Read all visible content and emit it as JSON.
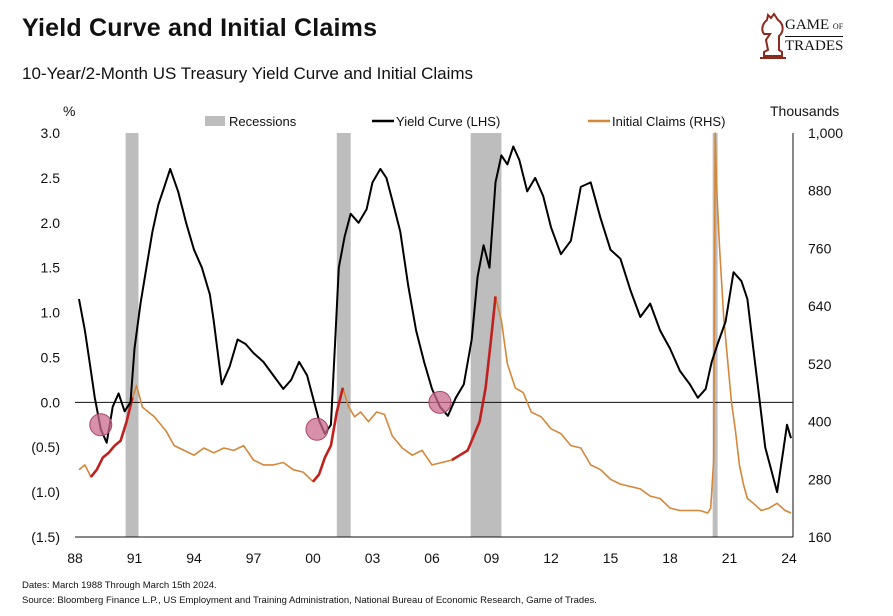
{
  "header": {
    "title": "Yield Curve  and Initial Claims",
    "subtitle": "10-Year/2-Month US Treasury Yield Curve and Initial Claims"
  },
  "logo": {
    "line1": "GAME",
    "line1_small": "OF",
    "line2": "TRADES",
    "icon": "knight-chess-icon"
  },
  "footer": {
    "dates": "Dates: March 1988 Through March 15th 2024.",
    "source": "Source: Bloomberg Finance L.P., US Employment and Training Administration, National Bureau of Economic Research, Game of Trades."
  },
  "colors": {
    "yield": "#000000",
    "claims": "#D4873A",
    "claims_highlight": "#C0201E",
    "recession": "#BDBDBD",
    "circle": "#C9698E"
  },
  "chart_data": {
    "type": "line",
    "left_unit": "%",
    "right_unit": "Thousands",
    "legend": [
      "Recessions",
      "Yield Curve (LHS)",
      "Initial Claims (RHS)"
    ],
    "legend_placement": "top",
    "x_tick_labels": [
      "88",
      "91",
      "94",
      "97",
      "00",
      "03",
      "06",
      "09",
      "12",
      "15",
      "18",
      "21",
      "24"
    ],
    "x_tick_years": [
      1988,
      1991,
      1994,
      1997,
      2000,
      2003,
      2006,
      2009,
      2012,
      2015,
      2018,
      2021,
      2024
    ],
    "xlim": [
      1988.0,
      2024.2
    ],
    "left_ylim": [
      -1.5,
      3.0
    ],
    "left_tick_labels": [
      "3.0",
      "2.5",
      "2.0",
      "1.5",
      "1.0",
      "0.5",
      "0.0",
      "(0.5)",
      "(1.0)",
      "(1.5)"
    ],
    "left_tick_values": [
      3.0,
      2.5,
      2.0,
      1.5,
      1.0,
      0.5,
      0.0,
      -0.5,
      -1.0,
      -1.5
    ],
    "right_ylim": [
      160,
      1000
    ],
    "right_tick_labels": [
      "1,000",
      "880",
      "760",
      "640",
      "520",
      "400",
      "280",
      "160"
    ],
    "right_tick_values": [
      1000,
      880,
      760,
      640,
      520,
      400,
      280,
      160
    ],
    "recessions": [
      [
        1990.55,
        1991.2
      ],
      [
        2001.2,
        2001.9
      ],
      [
        2007.95,
        2009.5
      ],
      [
        2020.15,
        2020.4
      ]
    ],
    "inversion_markers": [
      [
        1989.3,
        -0.25
      ],
      [
        2000.2,
        -0.3
      ],
      [
        2006.4,
        0.0
      ]
    ],
    "series": [
      {
        "name": "Yield Curve (LHS)",
        "x": [
          1988.2,
          1988.5,
          1988.8,
          1989.0,
          1989.3,
          1989.6,
          1989.9,
          1990.2,
          1990.5,
          1990.8,
          1991.0,
          1991.3,
          1991.6,
          1991.9,
          1992.2,
          1992.5,
          1992.8,
          1993.2,
          1993.6,
          1994.0,
          1994.4,
          1994.8,
          1995.0,
          1995.4,
          1995.8,
          1996.2,
          1996.6,
          1997.0,
          1997.5,
          1998.0,
          1998.5,
          1998.9,
          1999.3,
          1999.7,
          2000.0,
          2000.3,
          2000.6,
          2000.9,
          2001.1,
          2001.3,
          2001.6,
          2001.9,
          2002.3,
          2002.7,
          2003.0,
          2003.4,
          2003.7,
          2004.0,
          2004.4,
          2004.8,
          2005.2,
          2005.6,
          2006.0,
          2006.4,
          2006.8,
          2007.2,
          2007.6,
          2008.0,
          2008.3,
          2008.6,
          2008.9,
          2009.2,
          2009.5,
          2009.8,
          2010.1,
          2010.4,
          2010.8,
          2011.2,
          2011.6,
          2012.0,
          2012.5,
          2013.0,
          2013.5,
          2014.0,
          2014.5,
          2015.0,
          2015.5,
          2016.0,
          2016.5,
          2017.0,
          2017.5,
          2018.0,
          2018.5,
          2019.0,
          2019.4,
          2019.8,
          2020.1,
          2020.4,
          2020.8,
          2021.2,
          2021.6,
          2021.9,
          2022.2,
          2022.5,
          2022.8,
          2023.1,
          2023.4,
          2023.7,
          2023.9,
          2024.1
        ],
        "values": [
          1.15,
          0.8,
          0.35,
          0.05,
          -0.3,
          -0.45,
          -0.05,
          0.1,
          -0.1,
          0.0,
          0.6,
          1.1,
          1.5,
          1.9,
          2.2,
          2.4,
          2.6,
          2.35,
          2.0,
          1.7,
          1.5,
          1.2,
          0.9,
          0.2,
          0.4,
          0.7,
          0.65,
          0.55,
          0.45,
          0.3,
          0.15,
          0.25,
          0.45,
          0.3,
          0.05,
          -0.2,
          -0.35,
          -0.25,
          0.6,
          1.5,
          1.85,
          2.1,
          2.0,
          2.15,
          2.45,
          2.6,
          2.5,
          2.25,
          1.9,
          1.3,
          0.8,
          0.45,
          0.15,
          -0.05,
          -0.15,
          0.05,
          0.2,
          0.7,
          1.4,
          1.75,
          1.5,
          2.45,
          2.75,
          2.65,
          2.85,
          2.7,
          2.35,
          2.5,
          2.3,
          1.95,
          1.65,
          1.8,
          2.4,
          2.45,
          2.05,
          1.7,
          1.6,
          1.25,
          0.95,
          1.1,
          0.8,
          0.6,
          0.35,
          0.2,
          0.05,
          0.15,
          0.45,
          0.65,
          0.9,
          1.45,
          1.35,
          1.15,
          0.6,
          0.05,
          -0.5,
          -0.75,
          -1.0,
          -0.55,
          -0.25,
          -0.4
        ]
      },
      {
        "name": "Initial Claims (RHS)",
        "x": [
          1988.2,
          1988.5,
          1988.8,
          1989.1,
          1989.4,
          1989.7,
          1990.0,
          1990.3,
          1990.6,
          1990.9,
          1991.1,
          1991.4,
          1991.7,
          1992.0,
          1992.3,
          1992.6,
          1993.0,
          1993.5,
          1994.0,
          1994.5,
          1995.0,
          1995.5,
          1996.0,
          1996.5,
          1997.0,
          1997.5,
          1998.0,
          1998.5,
          1999.0,
          1999.5,
          2000.0,
          2000.3,
          2000.6,
          2000.9,
          2001.2,
          2001.5,
          2001.8,
          2002.1,
          2002.4,
          2002.8,
          2003.2,
          2003.6,
          2004.0,
          2004.5,
          2005.0,
          2005.5,
          2006.0,
          2006.5,
          2007.0,
          2007.4,
          2007.8,
          2008.1,
          2008.4,
          2008.7,
          2009.0,
          2009.2,
          2009.5,
          2009.8,
          2010.2,
          2010.6,
          2011.0,
          2011.5,
          2012.0,
          2012.5,
          2013.0,
          2013.5,
          2014.0,
          2014.5,
          2015.0,
          2015.5,
          2016.0,
          2016.5,
          2017.0,
          2017.5,
          2018.0,
          2018.5,
          2019.0,
          2019.5,
          2019.9,
          2020.05,
          2020.2,
          2020.28,
          2020.36,
          2020.5,
          2020.7,
          2020.9,
          2021.1,
          2021.3,
          2021.5,
          2021.7,
          2021.9,
          2022.2,
          2022.6,
          2023.0,
          2023.4,
          2023.8,
          2024.1
        ],
        "values": [
          300,
          310,
          285,
          300,
          325,
          335,
          350,
          360,
          400,
          450,
          475,
          430,
          420,
          410,
          395,
          380,
          350,
          340,
          330,
          345,
          335,
          345,
          340,
          350,
          320,
          310,
          310,
          315,
          300,
          295,
          275,
          290,
          325,
          350,
          420,
          470,
          430,
          410,
          420,
          400,
          420,
          415,
          370,
          345,
          330,
          340,
          310,
          315,
          320,
          330,
          340,
          370,
          400,
          470,
          580,
          660,
          610,
          520,
          470,
          460,
          420,
          410,
          385,
          375,
          350,
          345,
          310,
          300,
          280,
          270,
          265,
          260,
          245,
          240,
          220,
          215,
          215,
          215,
          210,
          220,
          320,
          1000,
          880,
          760,
          620,
          530,
          440,
          380,
          310,
          270,
          240,
          230,
          215,
          220,
          230,
          215,
          210
        ]
      }
    ]
  }
}
